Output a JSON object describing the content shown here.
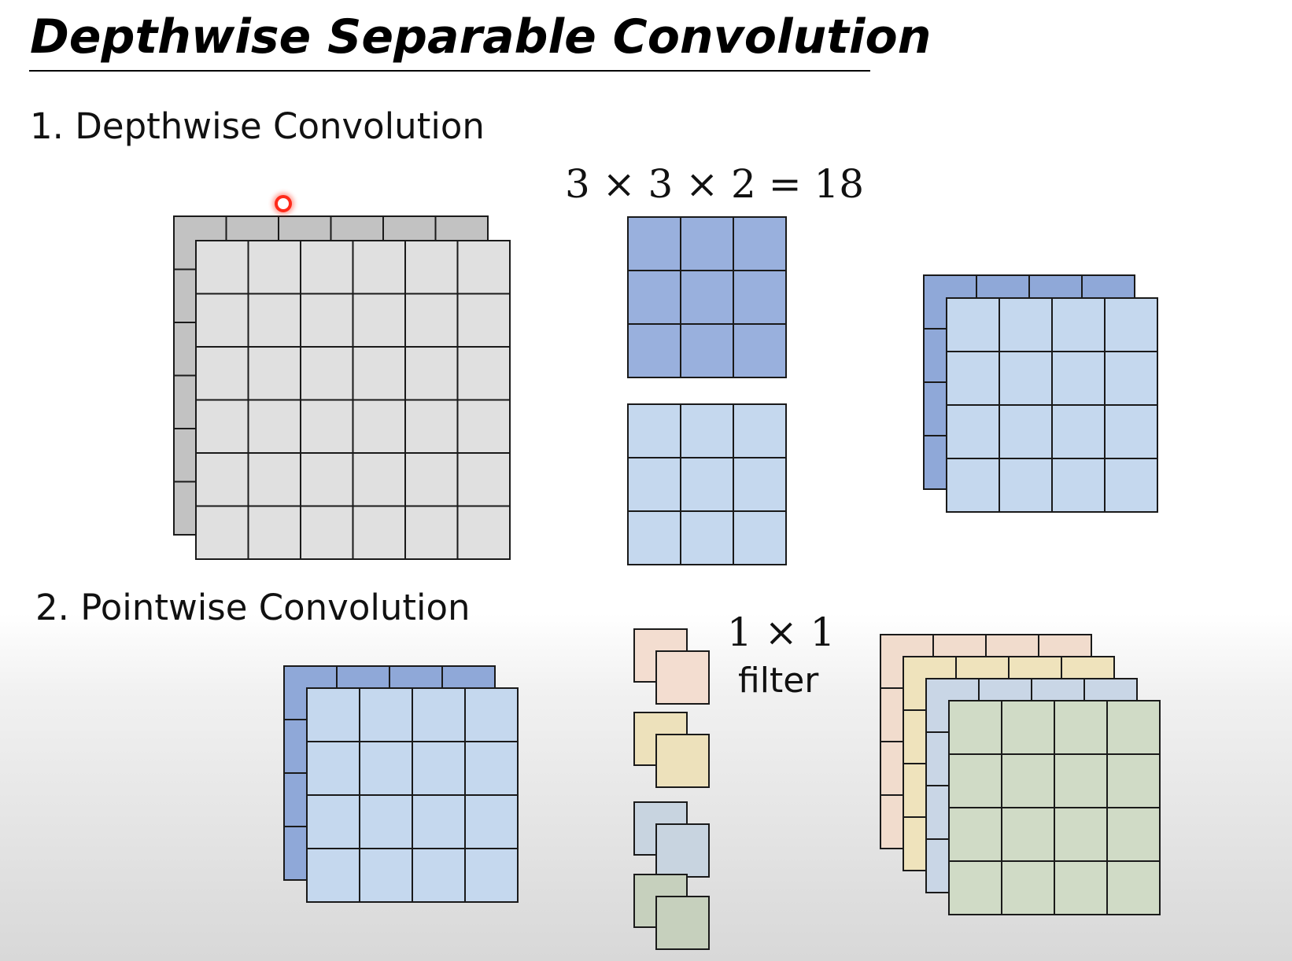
{
  "title": "Depthwise Separable Convolution",
  "sections": {
    "depthwise": "1. Depthwise Convolution",
    "pointwise": "2. Pointwise Convolution"
  },
  "depthwise": {
    "equation": "3 × 3 × 2 = 18",
    "input_grid": {
      "rows": 6,
      "cols": 6,
      "channels": 2
    },
    "kernels": [
      {
        "rows": 3,
        "cols": 3
      },
      {
        "rows": 3,
        "cols": 3
      }
    ],
    "output_grid": {
      "rows": 4,
      "cols": 4,
      "channels": 2
    }
  },
  "pointwise": {
    "filter_size": "1 × 1",
    "filter_word": "filter",
    "input_grid": {
      "rows": 4,
      "cols": 4,
      "channels": 2
    },
    "filter_count": 4,
    "output_grid": {
      "rows": 4,
      "cols": 4,
      "channels": 4
    }
  },
  "colors": {
    "input_front": "#e0e0e0",
    "input_back": "#c2c2c2",
    "kernel_dark": "#99b0dd",
    "kernel_light": "#c5d8ee",
    "output_back": "#8fa8d8",
    "output_front": "#c5d8ee",
    "filter_1": "#f3ddd0",
    "filter_2": "#ede1bb",
    "filter_3": "#c8d4e0",
    "filter_4": "#c6d0bd",
    "stack_front": "#d0dbc6",
    "stack_2": "#c9d6e6",
    "stack_3": "#efe3bc",
    "stack_4": "#f1dccd",
    "pointer": "#ff2a1a"
  }
}
